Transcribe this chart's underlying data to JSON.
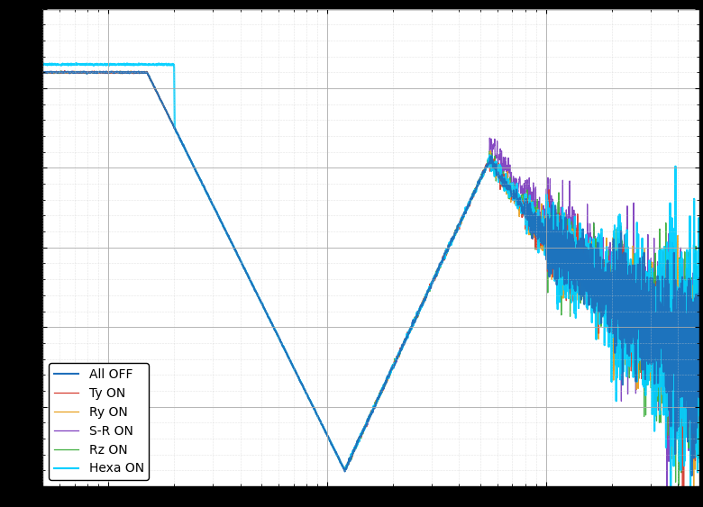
{
  "title": "",
  "xlabel": "",
  "ylabel": "",
  "legend_labels": [
    "All OFF",
    "Ty ON",
    "Ry ON",
    "S-R ON",
    "Rz ON",
    "Hexa ON"
  ],
  "line_colors": [
    "#1f6fba",
    "#d63b2f",
    "#e8a020",
    "#7f3fbf",
    "#3faf3f",
    "#00cfff"
  ],
  "line_widths": [
    1.5,
    0.9,
    0.9,
    0.9,
    0.9,
    1.5
  ],
  "background_color": "#ffffff",
  "grid_major_color": "#aaaaaa",
  "grid_minor_color": "#cccccc",
  "figsize": [
    7.8,
    5.63
  ],
  "dpi": 100,
  "xlim_log": [
    0.5,
    500
  ],
  "ylim": [
    -120,
    -60
  ],
  "legend_loc": "lower left",
  "legend_fontsize": 10,
  "fig_bg": "#000000"
}
